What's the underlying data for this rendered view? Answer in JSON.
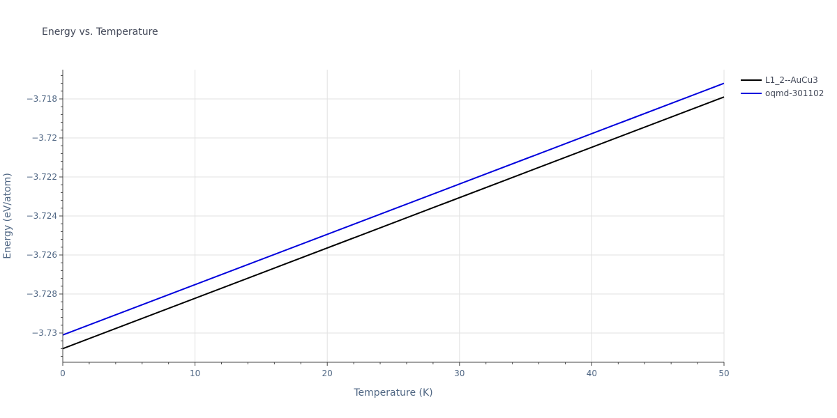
{
  "chart_data": {
    "type": "line",
    "title": "Energy vs. Temperature",
    "xlabel": "Temperature (K)",
    "ylabel": "Energy (eV/atom)",
    "xlim": [
      0,
      50
    ],
    "ylim": [
      -3.7315,
      -3.7165
    ],
    "x_ticks": [
      0,
      10,
      20,
      30,
      40,
      50
    ],
    "x_tick_labels": [
      "0",
      "10",
      "20",
      "30",
      "40",
      "50"
    ],
    "y_ticks": [
      -3.73,
      -3.728,
      -3.726,
      -3.724,
      -3.722,
      -3.72,
      -3.718
    ],
    "y_tick_labels": [
      "−3.73",
      "−3.728",
      "−3.726",
      "−3.724",
      "−3.722",
      "−3.72",
      "−3.718"
    ],
    "grid": true,
    "legend_position": "top-right",
    "series": [
      {
        "name": "L1_2--AuCu3",
        "color": "#000000",
        "x": [
          0,
          50
        ],
        "y": [
          -3.7308,
          -3.7179
        ]
      },
      {
        "name": "oqmd-301102",
        "color": "#0000dd",
        "x": [
          0,
          50
        ],
        "y": [
          -3.7301,
          -3.7172
        ]
      }
    ]
  }
}
